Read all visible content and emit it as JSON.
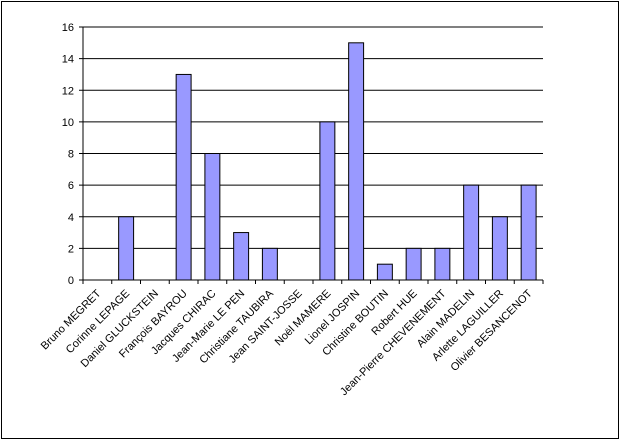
{
  "chart_data": {
    "type": "bar",
    "categories": [
      "Bruno MEGRET",
      "Corinne LEPAGE",
      "Daniel GLUCKSTEIN",
      "François BAYROU",
      "Jacques CHIRAC",
      "Jean-Marie LE PEN",
      "Christiane TAUBIRA",
      "Jean SAINT-JOSSE",
      "Noël MAMERE",
      "Lionel JOSPIN",
      "Christine BOUTIN",
      "Robert HUE",
      "Jean-Pierre CHEVENEMENT",
      "Alain MADELIN",
      "Arlette LAGUILLER",
      "Olivier BESANCENOT"
    ],
    "values": [
      0,
      4,
      0,
      13,
      8,
      3,
      2,
      0,
      10,
      15,
      1,
      2,
      2,
      6,
      4,
      6
    ],
    "color": "#9999ff",
    "ylim": [
      0,
      16
    ],
    "yticks": [
      0,
      2,
      4,
      6,
      8,
      10,
      12,
      14,
      16
    ],
    "grid": true
  }
}
